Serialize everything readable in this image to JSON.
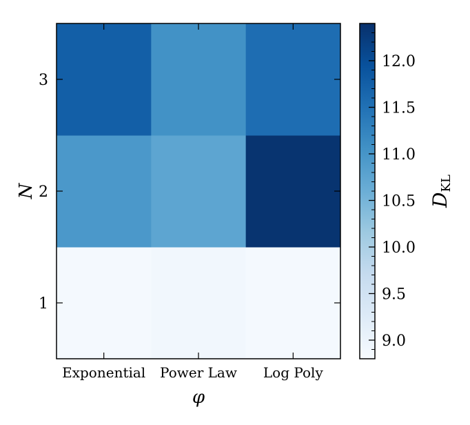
{
  "chart_data": {
    "type": "heatmap",
    "xlabel": "φ",
    "ylabel": "N",
    "x_categories": [
      "Exponential",
      "Power Law",
      "Log Poly"
    ],
    "y_categories": [
      "1",
      "2",
      "3"
    ],
    "values": [
      [
        8.85,
        8.9,
        8.85
      ],
      [
        10.95,
        10.75,
        12.35
      ],
      [
        11.75,
        11.05,
        11.55
      ]
    ],
    "colorbar": {
      "label_main": "D",
      "label_sub": "KL",
      "range": [
        8.8,
        12.4
      ],
      "ticks": [
        "9.0",
        "9.5",
        "10.0",
        "10.5",
        "11.0",
        "11.5",
        "12.0"
      ],
      "colormap": "Blues"
    }
  }
}
